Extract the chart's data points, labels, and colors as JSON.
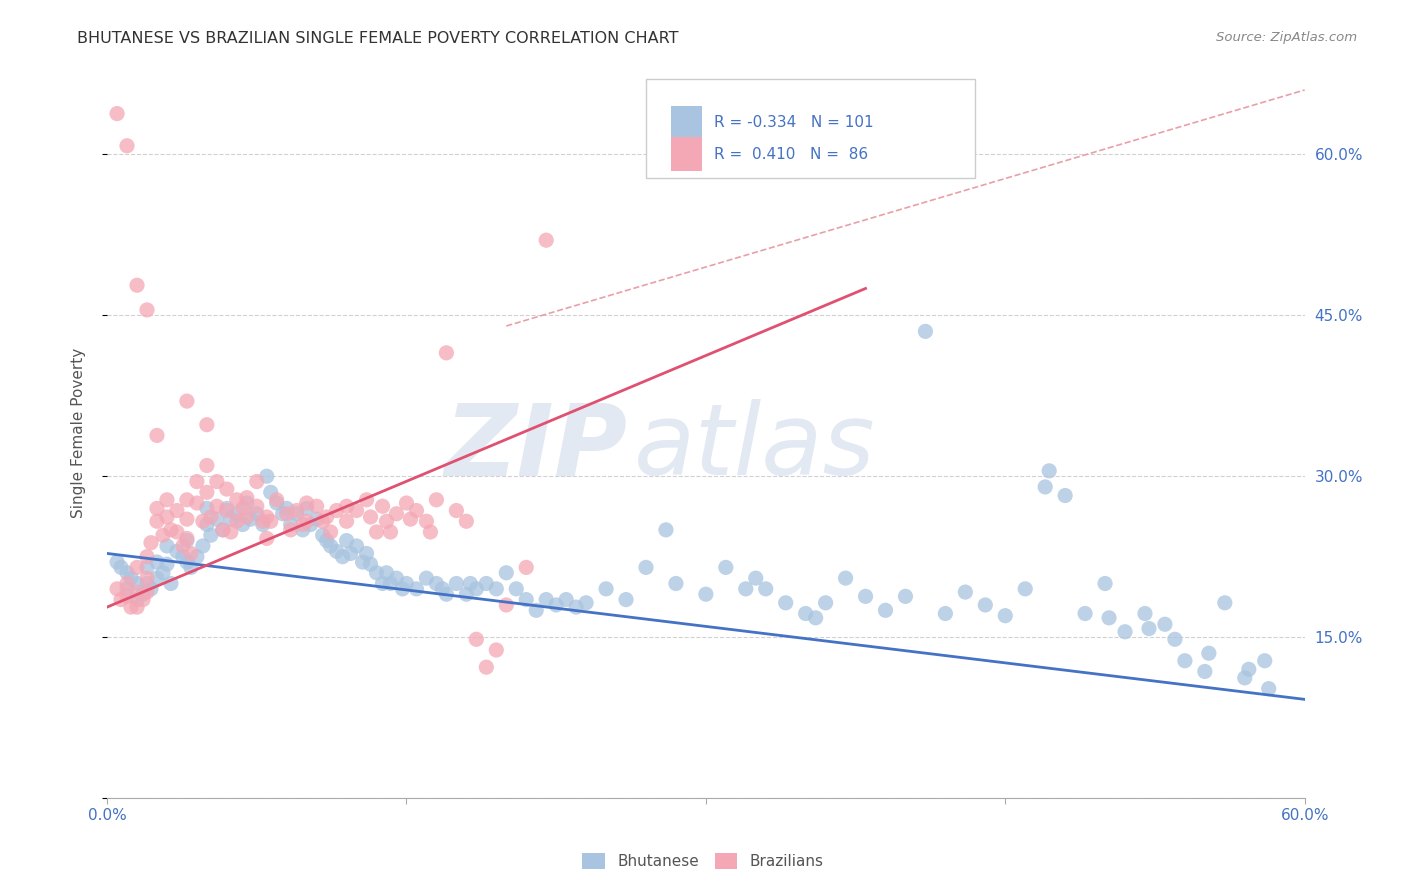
{
  "title": "BHUTANESE VS BRAZILIAN SINGLE FEMALE POVERTY CORRELATION CHART",
  "source": "Source: ZipAtlas.com",
  "ylabel": "Single Female Poverty",
  "xlim": [
    0.0,
    0.6
  ],
  "ylim": [
    0.0,
    0.68
  ],
  "bhutanese_color": "#a8c4e0",
  "brazilian_color": "#f4a7b5",
  "bhutanese_line_color": "#4472c4",
  "brazilian_line_color": "#e05070",
  "diagonal_color": "#e8a0a8",
  "legend_text_color": "#4472c4",
  "R_bhutanese": -0.334,
  "N_bhutanese": 101,
  "R_brazilian": 0.41,
  "N_brazilian": 86,
  "background_color": "#ffffff",
  "grid_color": "#cccccc",
  "watermark_zip": "ZIP",
  "watermark_atlas": "atlas",
  "bhutanese_line_x": [
    0.0,
    0.6
  ],
  "bhutanese_line_y": [
    0.228,
    0.092
  ],
  "brazilian_line_x": [
    0.0,
    0.38
  ],
  "brazilian_line_y": [
    0.178,
    0.475
  ],
  "diagonal_line_x": [
    0.2,
    0.6
  ],
  "diagonal_line_y": [
    0.44,
    0.66
  ],
  "bhutanese_scatter": [
    [
      0.005,
      0.22
    ],
    [
      0.007,
      0.215
    ],
    [
      0.01,
      0.21
    ],
    [
      0.01,
      0.195
    ],
    [
      0.012,
      0.205
    ],
    [
      0.015,
      0.2
    ],
    [
      0.015,
      0.185
    ],
    [
      0.018,
      0.19
    ],
    [
      0.02,
      0.215
    ],
    [
      0.02,
      0.2
    ],
    [
      0.022,
      0.195
    ],
    [
      0.025,
      0.22
    ],
    [
      0.025,
      0.205
    ],
    [
      0.028,
      0.21
    ],
    [
      0.03,
      0.235
    ],
    [
      0.03,
      0.218
    ],
    [
      0.032,
      0.2
    ],
    [
      0.035,
      0.23
    ],
    [
      0.038,
      0.225
    ],
    [
      0.04,
      0.24
    ],
    [
      0.04,
      0.22
    ],
    [
      0.042,
      0.215
    ],
    [
      0.045,
      0.225
    ],
    [
      0.048,
      0.235
    ],
    [
      0.05,
      0.27
    ],
    [
      0.05,
      0.255
    ],
    [
      0.052,
      0.245
    ],
    [
      0.055,
      0.26
    ],
    [
      0.058,
      0.25
    ],
    [
      0.06,
      0.27
    ],
    [
      0.062,
      0.26
    ],
    [
      0.065,
      0.265
    ],
    [
      0.068,
      0.255
    ],
    [
      0.07,
      0.275
    ],
    [
      0.072,
      0.26
    ],
    [
      0.075,
      0.265
    ],
    [
      0.078,
      0.255
    ],
    [
      0.08,
      0.3
    ],
    [
      0.082,
      0.285
    ],
    [
      0.085,
      0.275
    ],
    [
      0.088,
      0.265
    ],
    [
      0.09,
      0.27
    ],
    [
      0.092,
      0.255
    ],
    [
      0.095,
      0.265
    ],
    [
      0.098,
      0.25
    ],
    [
      0.1,
      0.27
    ],
    [
      0.102,
      0.255
    ],
    [
      0.105,
      0.26
    ],
    [
      0.108,
      0.245
    ],
    [
      0.11,
      0.24
    ],
    [
      0.112,
      0.235
    ],
    [
      0.115,
      0.23
    ],
    [
      0.118,
      0.225
    ],
    [
      0.12,
      0.24
    ],
    [
      0.122,
      0.228
    ],
    [
      0.125,
      0.235
    ],
    [
      0.128,
      0.22
    ],
    [
      0.13,
      0.228
    ],
    [
      0.132,
      0.218
    ],
    [
      0.135,
      0.21
    ],
    [
      0.138,
      0.2
    ],
    [
      0.14,
      0.21
    ],
    [
      0.142,
      0.2
    ],
    [
      0.145,
      0.205
    ],
    [
      0.148,
      0.195
    ],
    [
      0.15,
      0.2
    ],
    [
      0.155,
      0.195
    ],
    [
      0.16,
      0.205
    ],
    [
      0.165,
      0.2
    ],
    [
      0.168,
      0.195
    ],
    [
      0.17,
      0.19
    ],
    [
      0.175,
      0.2
    ],
    [
      0.18,
      0.19
    ],
    [
      0.182,
      0.2
    ],
    [
      0.185,
      0.195
    ],
    [
      0.19,
      0.2
    ],
    [
      0.195,
      0.195
    ],
    [
      0.2,
      0.21
    ],
    [
      0.205,
      0.195
    ],
    [
      0.21,
      0.185
    ],
    [
      0.215,
      0.175
    ],
    [
      0.22,
      0.185
    ],
    [
      0.225,
      0.18
    ],
    [
      0.23,
      0.185
    ],
    [
      0.235,
      0.178
    ],
    [
      0.24,
      0.182
    ],
    [
      0.25,
      0.195
    ],
    [
      0.26,
      0.185
    ],
    [
      0.27,
      0.215
    ],
    [
      0.28,
      0.25
    ],
    [
      0.285,
      0.2
    ],
    [
      0.3,
      0.19
    ],
    [
      0.31,
      0.215
    ],
    [
      0.32,
      0.195
    ],
    [
      0.325,
      0.205
    ],
    [
      0.33,
      0.195
    ],
    [
      0.34,
      0.182
    ],
    [
      0.35,
      0.172
    ],
    [
      0.355,
      0.168
    ],
    [
      0.36,
      0.182
    ],
    [
      0.37,
      0.205
    ],
    [
      0.38,
      0.188
    ],
    [
      0.39,
      0.175
    ],
    [
      0.4,
      0.188
    ],
    [
      0.41,
      0.435
    ],
    [
      0.42,
      0.172
    ],
    [
      0.43,
      0.192
    ],
    [
      0.44,
      0.18
    ],
    [
      0.45,
      0.17
    ],
    [
      0.46,
      0.195
    ],
    [
      0.47,
      0.29
    ],
    [
      0.472,
      0.305
    ],
    [
      0.48,
      0.282
    ],
    [
      0.49,
      0.172
    ],
    [
      0.5,
      0.2
    ],
    [
      0.502,
      0.168
    ],
    [
      0.51,
      0.155
    ],
    [
      0.52,
      0.172
    ],
    [
      0.522,
      0.158
    ],
    [
      0.53,
      0.162
    ],
    [
      0.535,
      0.148
    ],
    [
      0.54,
      0.128
    ],
    [
      0.55,
      0.118
    ],
    [
      0.552,
      0.135
    ],
    [
      0.56,
      0.182
    ],
    [
      0.57,
      0.112
    ],
    [
      0.572,
      0.12
    ],
    [
      0.58,
      0.128
    ],
    [
      0.582,
      0.102
    ]
  ],
  "brazilian_scatter": [
    [
      0.005,
      0.195
    ],
    [
      0.007,
      0.185
    ],
    [
      0.01,
      0.2
    ],
    [
      0.01,
      0.188
    ],
    [
      0.012,
      0.178
    ],
    [
      0.015,
      0.215
    ],
    [
      0.015,
      0.192
    ],
    [
      0.015,
      0.178
    ],
    [
      0.018,
      0.185
    ],
    [
      0.02,
      0.225
    ],
    [
      0.02,
      0.205
    ],
    [
      0.02,
      0.192
    ],
    [
      0.022,
      0.238
    ],
    [
      0.025,
      0.27
    ],
    [
      0.025,
      0.258
    ],
    [
      0.028,
      0.245
    ],
    [
      0.03,
      0.278
    ],
    [
      0.03,
      0.262
    ],
    [
      0.032,
      0.25
    ],
    [
      0.035,
      0.268
    ],
    [
      0.035,
      0.248
    ],
    [
      0.038,
      0.235
    ],
    [
      0.04,
      0.278
    ],
    [
      0.04,
      0.26
    ],
    [
      0.04,
      0.242
    ],
    [
      0.042,
      0.228
    ],
    [
      0.045,
      0.295
    ],
    [
      0.045,
      0.275
    ],
    [
      0.048,
      0.258
    ],
    [
      0.05,
      0.31
    ],
    [
      0.05,
      0.285
    ],
    [
      0.052,
      0.262
    ],
    [
      0.055,
      0.295
    ],
    [
      0.055,
      0.272
    ],
    [
      0.058,
      0.25
    ],
    [
      0.06,
      0.288
    ],
    [
      0.06,
      0.268
    ],
    [
      0.062,
      0.248
    ],
    [
      0.065,
      0.278
    ],
    [
      0.065,
      0.258
    ],
    [
      0.068,
      0.27
    ],
    [
      0.07,
      0.28
    ],
    [
      0.07,
      0.262
    ],
    [
      0.075,
      0.295
    ],
    [
      0.075,
      0.272
    ],
    [
      0.078,
      0.258
    ],
    [
      0.08,
      0.262
    ],
    [
      0.08,
      0.242
    ],
    [
      0.082,
      0.258
    ],
    [
      0.085,
      0.278
    ],
    [
      0.09,
      0.265
    ],
    [
      0.092,
      0.25
    ],
    [
      0.095,
      0.268
    ],
    [
      0.098,
      0.255
    ],
    [
      0.1,
      0.275
    ],
    [
      0.1,
      0.258
    ],
    [
      0.105,
      0.272
    ],
    [
      0.108,
      0.258
    ],
    [
      0.11,
      0.262
    ],
    [
      0.112,
      0.248
    ],
    [
      0.115,
      0.268
    ],
    [
      0.12,
      0.272
    ],
    [
      0.12,
      0.258
    ],
    [
      0.125,
      0.268
    ],
    [
      0.13,
      0.278
    ],
    [
      0.132,
      0.262
    ],
    [
      0.135,
      0.248
    ],
    [
      0.138,
      0.272
    ],
    [
      0.14,
      0.258
    ],
    [
      0.142,
      0.248
    ],
    [
      0.145,
      0.265
    ],
    [
      0.15,
      0.275
    ],
    [
      0.152,
      0.26
    ],
    [
      0.155,
      0.268
    ],
    [
      0.16,
      0.258
    ],
    [
      0.162,
      0.248
    ],
    [
      0.165,
      0.278
    ],
    [
      0.17,
      0.415
    ],
    [
      0.175,
      0.268
    ],
    [
      0.18,
      0.258
    ],
    [
      0.185,
      0.148
    ],
    [
      0.19,
      0.122
    ],
    [
      0.195,
      0.138
    ],
    [
      0.2,
      0.18
    ],
    [
      0.21,
      0.215
    ],
    [
      0.22,
      0.52
    ],
    [
      0.04,
      0.37
    ],
    [
      0.05,
      0.348
    ],
    [
      0.005,
      0.638
    ],
    [
      0.01,
      0.608
    ],
    [
      0.015,
      0.478
    ],
    [
      0.02,
      0.455
    ],
    [
      0.025,
      0.338
    ]
  ]
}
